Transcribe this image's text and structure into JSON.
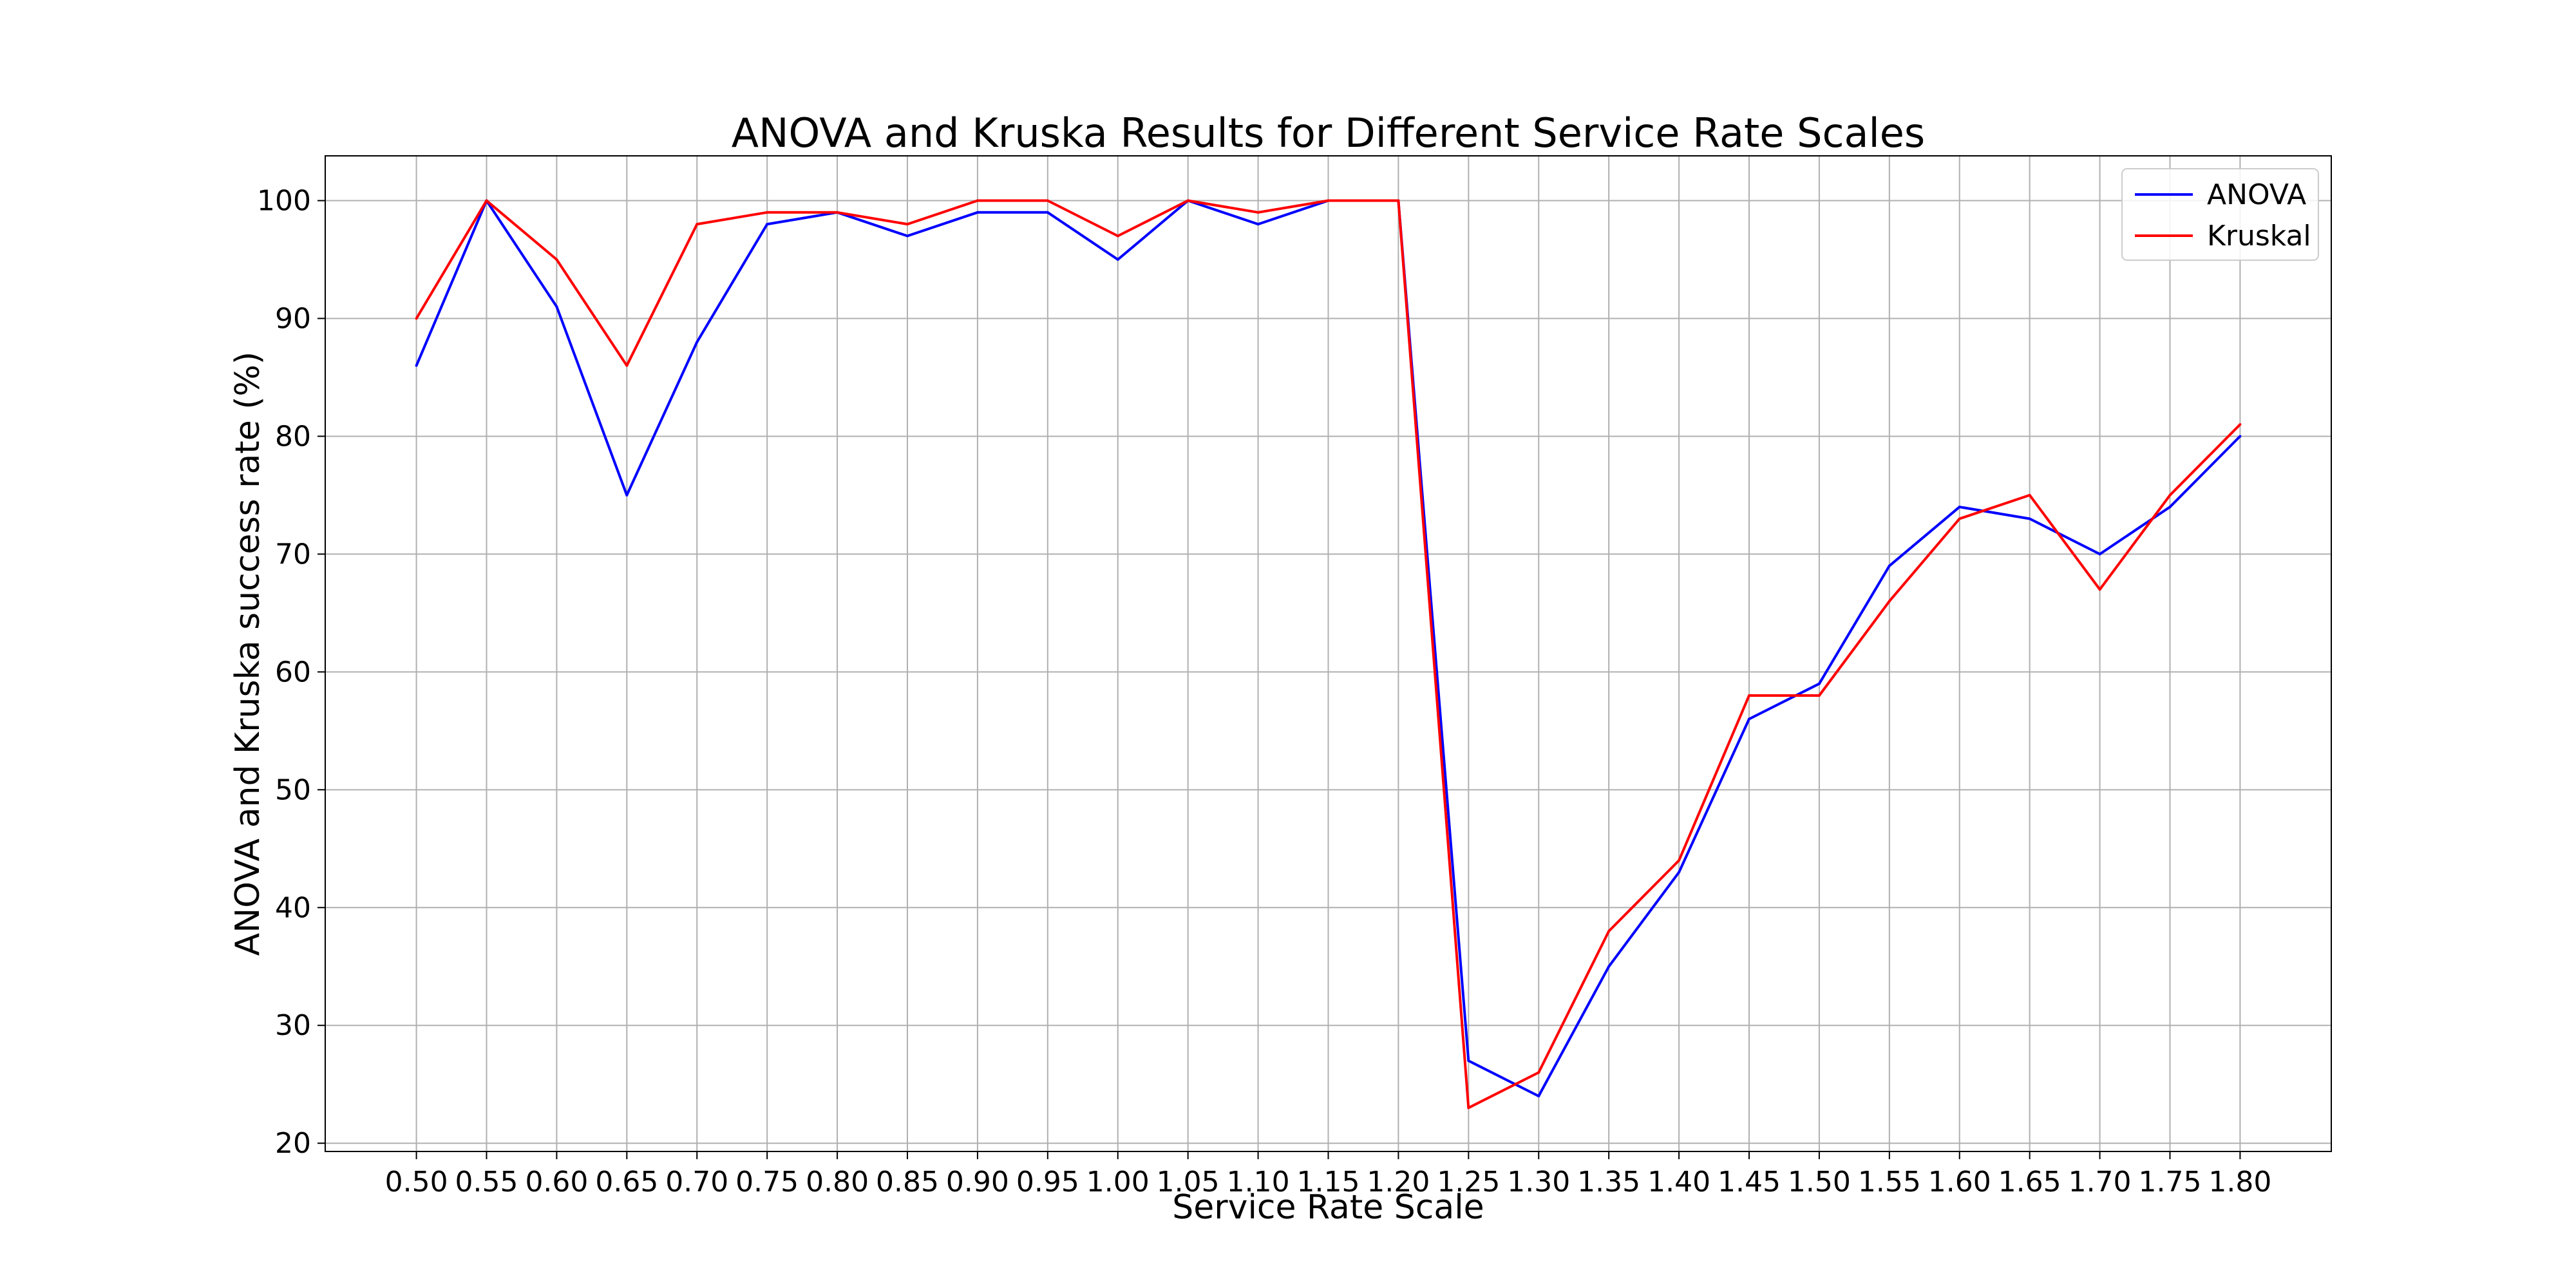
{
  "chart_data": {
    "type": "line",
    "title": "ANOVA and Kruska Results for Different Service Rate Scales",
    "xlabel": "Service Rate Scale",
    "ylabel": "ANOVA and Kruska success rate (%)",
    "x": [
      0.5,
      0.55,
      0.6,
      0.65,
      0.7,
      0.75,
      0.8,
      0.85,
      0.9,
      0.95,
      1.0,
      1.05,
      1.1,
      1.15,
      1.2,
      1.25,
      1.3,
      1.35,
      1.4,
      1.45,
      1.5,
      1.55,
      1.6,
      1.65,
      1.7,
      1.75,
      1.8
    ],
    "x_tick_labels": [
      "0.50",
      "0.55",
      "0.60",
      "0.65",
      "0.70",
      "0.75",
      "0.80",
      "0.85",
      "0.90",
      "0.95",
      "1.00",
      "1.05",
      "1.10",
      "1.15",
      "1.20",
      "1.25",
      "1.30",
      "1.35",
      "1.40",
      "1.45",
      "1.50",
      "1.55",
      "1.60",
      "1.65",
      "1.70",
      "1.75",
      "1.80"
    ],
    "y_ticks": [
      20,
      30,
      40,
      50,
      60,
      70,
      80,
      90,
      100
    ],
    "y_tick_labels": [
      "20",
      "30",
      "40",
      "50",
      "60",
      "70",
      "80",
      "90",
      "100"
    ],
    "xlim": [
      0.435,
      1.865
    ],
    "ylim": [
      19.3,
      103.8
    ],
    "grid": true,
    "legend_position": "top-right",
    "series": [
      {
        "name": "ANOVA",
        "color": "#0000ff",
        "values": [
          86,
          100,
          91,
          75,
          88,
          98,
          99,
          97,
          99,
          99,
          95,
          100,
          98,
          100,
          100,
          27,
          24,
          35,
          43,
          56,
          59,
          69,
          74,
          73,
          70,
          74,
          80
        ]
      },
      {
        "name": "Kruskal",
        "color": "#ff0000",
        "values": [
          90,
          100,
          95,
          86,
          98,
          99,
          99,
          98,
          100,
          100,
          97,
          100,
          99,
          100,
          100,
          23,
          26,
          38,
          44,
          58,
          58,
          66,
          73,
          75,
          67,
          75,
          81
        ]
      }
    ]
  }
}
